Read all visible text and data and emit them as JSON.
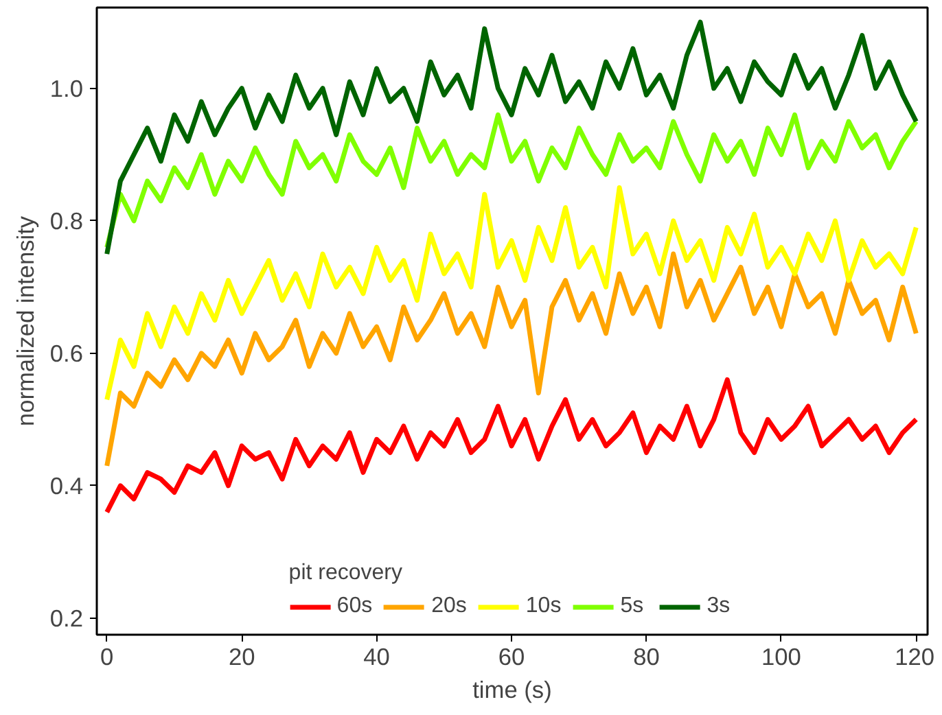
{
  "chart_data": {
    "type": "line",
    "xlabel": "time (s)",
    "ylabel": "normalized intensity",
    "legend_title": "pit recovery",
    "legend": "bottom",
    "grid": false,
    "line_style": "solid",
    "xlim": [
      -1.5,
      121.7
    ],
    "ylim": [
      0.175,
      1.122
    ],
    "xticks": [
      0,
      20,
      40,
      60,
      80,
      100,
      120
    ],
    "yticks": [
      0.2,
      0.4,
      0.6,
      0.8,
      {
        "value": 1,
        "label": "1.0"
      }
    ],
    "x": [
      0,
      2,
      4,
      6,
      8,
      10,
      12,
      14,
      16,
      18,
      20,
      22,
      24,
      26,
      28,
      30,
      32,
      34,
      36,
      38,
      40,
      42,
      44,
      46,
      48,
      50,
      52,
      54,
      56,
      58,
      60,
      62,
      64,
      66,
      68,
      70,
      72,
      74,
      76,
      78,
      80,
      82,
      84,
      86,
      88,
      90,
      92,
      94,
      96,
      98,
      100,
      102,
      104,
      106,
      108,
      110,
      112,
      114,
      116,
      118,
      120
    ],
    "series": [
      {
        "name": "60s",
        "color": "#ff0000",
        "values": [
          0.36,
          0.4,
          0.38,
          0.42,
          0.41,
          0.39,
          0.43,
          0.42,
          0.45,
          0.4,
          0.46,
          0.44,
          0.45,
          0.41,
          0.47,
          0.43,
          0.46,
          0.44,
          0.48,
          0.42,
          0.47,
          0.45,
          0.49,
          0.44,
          0.48,
          0.46,
          0.5,
          0.45,
          0.47,
          0.52,
          0.46,
          0.5,
          0.44,
          0.49,
          0.53,
          0.47,
          0.5,
          0.46,
          0.48,
          0.51,
          0.45,
          0.49,
          0.47,
          0.52,
          0.46,
          0.5,
          0.56,
          0.48,
          0.45,
          0.5,
          0.47,
          0.49,
          0.52,
          0.46,
          0.48,
          0.5,
          0.47,
          0.49,
          0.45,
          0.48,
          0.5
        ]
      },
      {
        "name": "20s",
        "color": "#ffa500",
        "values": [
          0.43,
          0.54,
          0.52,
          0.57,
          0.55,
          0.59,
          0.56,
          0.6,
          0.58,
          0.62,
          0.57,
          0.63,
          0.59,
          0.61,
          0.65,
          0.58,
          0.63,
          0.6,
          0.66,
          0.61,
          0.64,
          0.59,
          0.67,
          0.62,
          0.65,
          0.69,
          0.63,
          0.66,
          0.61,
          0.7,
          0.64,
          0.68,
          0.54,
          0.67,
          0.71,
          0.65,
          0.69,
          0.63,
          0.72,
          0.66,
          0.7,
          0.64,
          0.75,
          0.67,
          0.71,
          0.65,
          0.69,
          0.73,
          0.66,
          0.7,
          0.64,
          0.72,
          0.67,
          0.69,
          0.63,
          0.71,
          0.66,
          0.68,
          0.62,
          0.7,
          0.63
        ]
      },
      {
        "name": "10s",
        "color": "#ffff00",
        "values": [
          0.53,
          0.62,
          0.58,
          0.66,
          0.61,
          0.67,
          0.63,
          0.69,
          0.65,
          0.71,
          0.66,
          0.7,
          0.74,
          0.68,
          0.72,
          0.67,
          0.75,
          0.7,
          0.73,
          0.69,
          0.76,
          0.71,
          0.74,
          0.68,
          0.78,
          0.72,
          0.75,
          0.7,
          0.84,
          0.73,
          0.77,
          0.71,
          0.79,
          0.74,
          0.82,
          0.73,
          0.76,
          0.7,
          0.85,
          0.75,
          0.78,
          0.72,
          0.8,
          0.74,
          0.77,
          0.71,
          0.79,
          0.75,
          0.81,
          0.73,
          0.76,
          0.72,
          0.78,
          0.74,
          0.8,
          0.71,
          0.77,
          0.73,
          0.75,
          0.72,
          0.79
        ]
      },
      {
        "name": "5s",
        "color": "#80ff00",
        "values": [
          0.76,
          0.84,
          0.8,
          0.86,
          0.83,
          0.88,
          0.85,
          0.9,
          0.84,
          0.89,
          0.86,
          0.91,
          0.87,
          0.84,
          0.92,
          0.88,
          0.9,
          0.86,
          0.93,
          0.89,
          0.87,
          0.91,
          0.85,
          0.94,
          0.89,
          0.92,
          0.87,
          0.9,
          0.88,
          0.96,
          0.89,
          0.92,
          0.86,
          0.91,
          0.88,
          0.94,
          0.9,
          0.87,
          0.93,
          0.89,
          0.91,
          0.88,
          0.95,
          0.9,
          0.86,
          0.93,
          0.89,
          0.92,
          0.87,
          0.94,
          0.9,
          0.96,
          0.88,
          0.92,
          0.89,
          0.95,
          0.91,
          0.93,
          0.88,
          0.92,
          0.95
        ]
      },
      {
        "name": "3s",
        "color": "#006400",
        "values": [
          0.75,
          0.86,
          0.9,
          0.94,
          0.89,
          0.96,
          0.92,
          0.98,
          0.93,
          0.97,
          1.0,
          0.94,
          0.99,
          0.95,
          1.02,
          0.97,
          1.0,
          0.93,
          1.01,
          0.96,
          1.03,
          0.98,
          1.0,
          0.95,
          1.04,
          0.99,
          1.02,
          0.97,
          1.09,
          1.0,
          0.96,
          1.03,
          0.99,
          1.05,
          0.98,
          1.01,
          0.97,
          1.04,
          1.0,
          1.06,
          0.99,
          1.02,
          0.97,
          1.05,
          1.1,
          1.0,
          1.03,
          0.98,
          1.04,
          1.01,
          0.99,
          1.05,
          1.0,
          1.03,
          0.97,
          1.02,
          1.08,
          1.0,
          1.04,
          0.99,
          0.95
        ]
      }
    ]
  }
}
